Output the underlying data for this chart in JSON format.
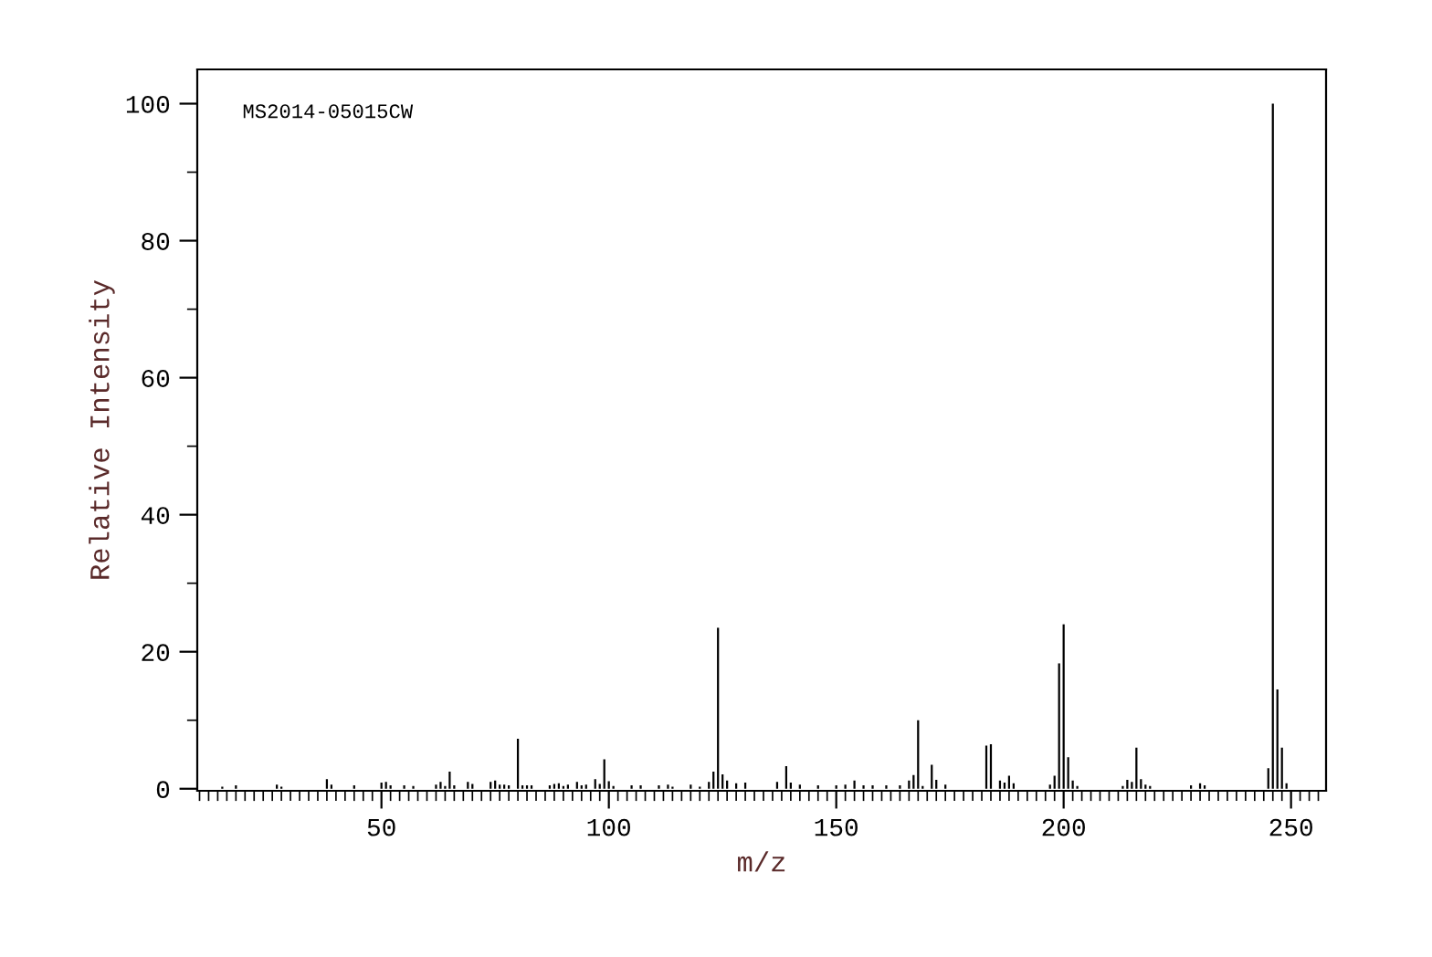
{
  "chart_data": {
    "type": "bar",
    "xlabel": "m/z",
    "ylabel": "Relative Intensity",
    "annotations": [
      "MS2014-05015CW"
    ],
    "x": [
      15,
      18,
      27,
      28,
      38,
      39,
      44,
      50,
      51,
      52,
      55,
      57,
      62,
      63,
      64,
      65,
      66,
      69,
      70,
      74,
      75,
      76,
      77,
      78,
      80,
      81,
      82,
      83,
      87,
      88,
      89,
      90,
      91,
      93,
      94,
      95,
      97,
      98,
      99,
      100,
      101,
      105,
      107,
      111,
      113,
      114,
      118,
      120,
      122,
      123,
      124,
      125,
      126,
      128,
      130,
      137,
      139,
      140,
      142,
      146,
      150,
      152,
      154,
      156,
      158,
      161,
      164,
      166,
      167,
      168,
      169,
      171,
      172,
      174,
      183,
      184,
      186,
      187,
      188,
      189,
      197,
      198,
      199,
      200,
      201,
      202,
      203,
      213,
      214,
      215,
      216,
      217,
      218,
      219,
      228,
      230,
      231,
      245,
      246,
      247,
      248,
      249
    ],
    "values": [
      0.3,
      0.5,
      0.6,
      0.3,
      1.4,
      0.6,
      0.5,
      0.9,
      1.0,
      0.5,
      0.5,
      0.4,
      0.6,
      1.0,
      0.4,
      2.5,
      0.5,
      1.0,
      0.7,
      1.0,
      1.2,
      0.6,
      0.6,
      0.5,
      7.3,
      0.5,
      0.5,
      0.5,
      0.5,
      0.7,
      0.8,
      0.4,
      0.6,
      1.0,
      0.5,
      0.6,
      1.4,
      0.7,
      4.3,
      1.1,
      0.4,
      0.5,
      0.5,
      0.5,
      0.6,
      0.3,
      0.6,
      0.3,
      1.0,
      2.5,
      23.5,
      2.1,
      1.2,
      0.8,
      0.9,
      1.0,
      3.3,
      0.9,
      0.6,
      0.5,
      0.5,
      0.6,
      1.2,
      0.5,
      0.5,
      0.5,
      0.5,
      1.2,
      2.0,
      10.0,
      0.4,
      3.5,
      1.3,
      0.6,
      6.3,
      6.5,
      1.2,
      0.9,
      1.9,
      0.8,
      0.6,
      1.9,
      18.3,
      24.0,
      4.6,
      1.2,
      0.4,
      0.4,
      1.3,
      1.0,
      6.0,
      1.4,
      0.6,
      0.4,
      0.5,
      0.8,
      0.5,
      3.0,
      100,
      14.5,
      6.0,
      0.8
    ],
    "color": "#000000",
    "xlim": [
      9.5,
      257.7
    ],
    "xticks": [
      50,
      100,
      150,
      200,
      250
    ],
    "ylim": [
      -0.3,
      105
    ],
    "yticks": [
      0,
      20,
      40,
      60,
      80,
      100
    ],
    "grid": false,
    "legend": false
  }
}
